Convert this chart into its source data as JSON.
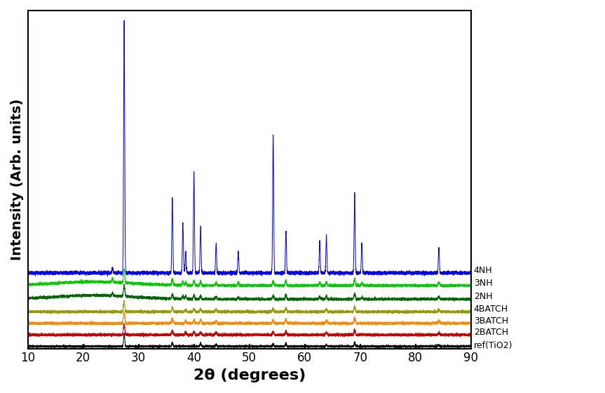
{
  "title": "",
  "xlabel": "2θ (degrees)",
  "ylabel": "Intensity (Arb. units)",
  "xlim": [
    10,
    90
  ],
  "x_ticks": [
    10,
    20,
    30,
    40,
    50,
    60,
    70,
    80,
    90
  ],
  "series_labels": [
    "ref(TiO2)",
    "2BATCH",
    "3BATCH",
    "4BATCH",
    "2NH",
    "3NH",
    "4NH"
  ],
  "series_colors": [
    "#000000",
    "#cc0000",
    "#ff8800",
    "#999900",
    "#006600",
    "#00cc00",
    "#0000ee"
  ],
  "offsets": [
    0.0,
    0.055,
    0.11,
    0.165,
    0.225,
    0.29,
    0.35
  ],
  "noise_level": 0.003,
  "background_color": "#ffffff",
  "figsize": [
    8.63,
    5.6
  ],
  "dpi": 100
}
